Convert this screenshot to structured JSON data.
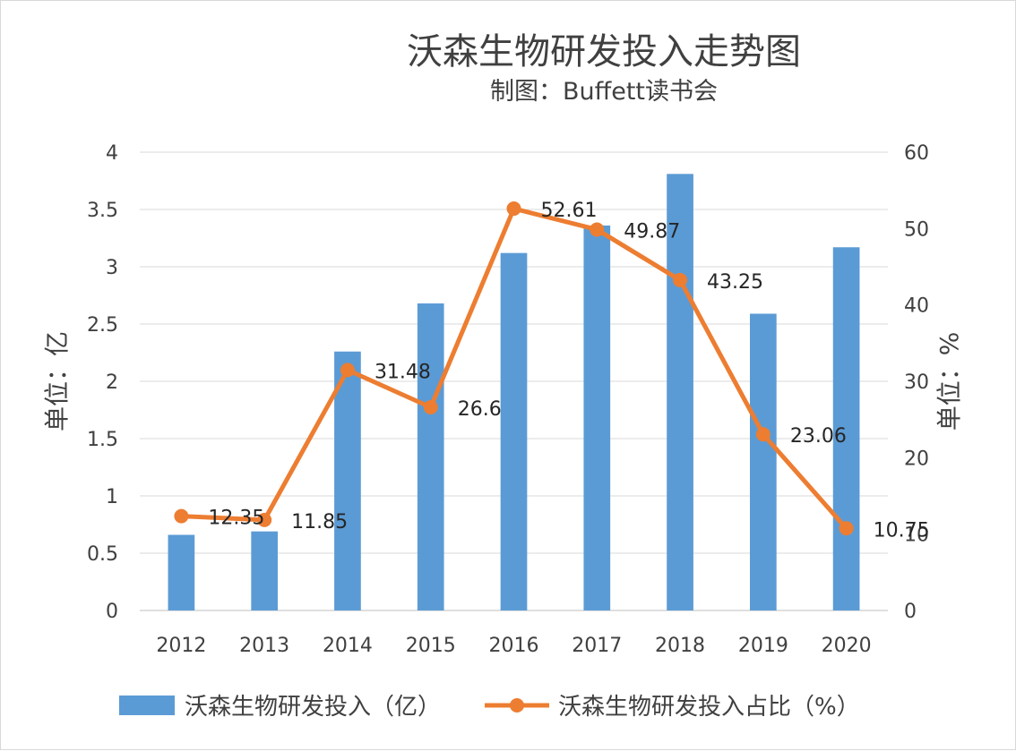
{
  "chart_data": {
    "type": "bar",
    "title": "沃森生物研发投入走势图",
    "subtitle": "制图：Buffett读书会",
    "categories": [
      "2012",
      "2013",
      "2014",
      "2015",
      "2016",
      "2017",
      "2018",
      "2019",
      "2020"
    ],
    "ylabel_left": "单位：亿",
    "ylabel_right": "单位：%",
    "ylim_left": [
      0,
      4
    ],
    "ylim_right": [
      0,
      60
    ],
    "yticks_left": [
      "0",
      "0.5",
      "1",
      "1.5",
      "2",
      "2.5",
      "3",
      "3.5",
      "4"
    ],
    "yticks_right": [
      "0",
      "10",
      "20",
      "30",
      "40",
      "50",
      "60"
    ],
    "grid": true,
    "legend_position": "bottom",
    "series": [
      {
        "name": "沃森生物研发投入（亿）",
        "type": "bar",
        "axis": "left",
        "color": "#5b9bd5",
        "values": [
          0.66,
          0.69,
          2.26,
          2.68,
          3.12,
          3.36,
          3.81,
          2.59,
          3.17
        ]
      },
      {
        "name": "沃森生物研发投入占比（%）",
        "type": "line",
        "axis": "right",
        "color": "#ed7d31",
        "values": [
          12.35,
          11.85,
          31.48,
          26.6,
          52.61,
          49.87,
          43.25,
          23.06,
          10.75
        ],
        "labels": [
          "12.35",
          "11.85",
          "31.48",
          "26.6",
          "52.61",
          "49.87",
          "43.25",
          "23.06",
          "10.75"
        ]
      }
    ]
  }
}
